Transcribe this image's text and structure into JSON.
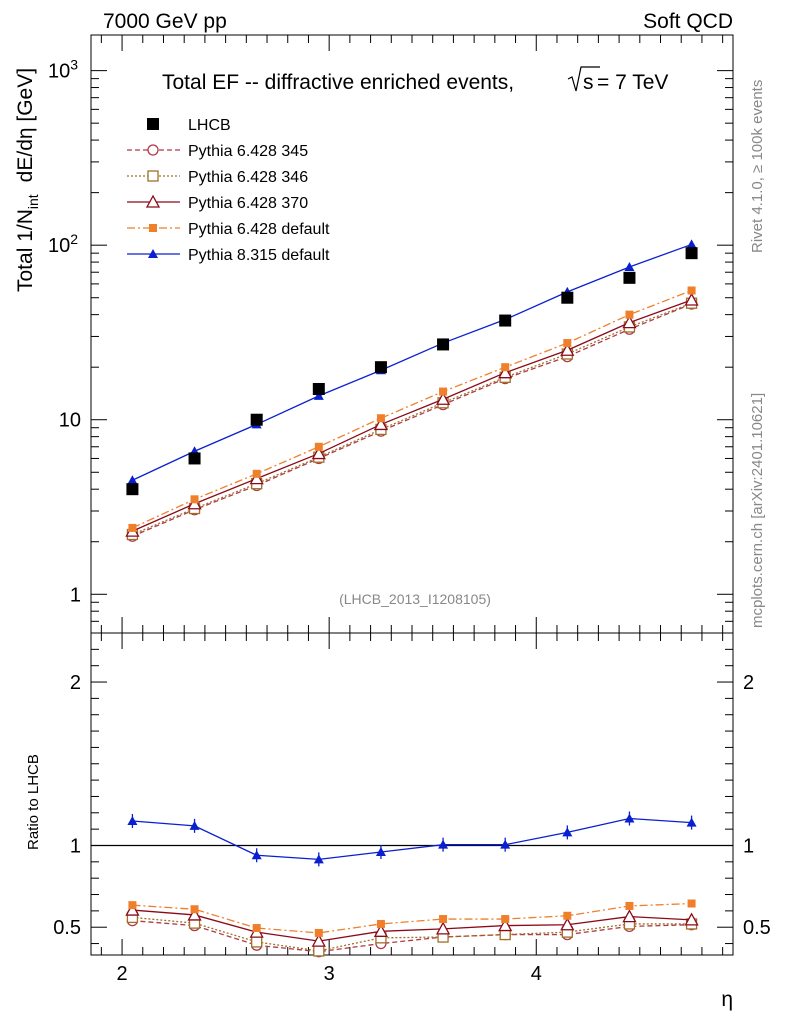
{
  "header": {
    "left": "7000 GeV pp",
    "right": "Soft QCD"
  },
  "side_labels": {
    "rivet": "Rivet 4.1.0, ≥ 100k events",
    "mcplots": "mcplots.cern.ch [arXiv:2401.10621]"
  },
  "chart_data": [
    {
      "type": "line",
      "panel": "main",
      "title": "Total EF -- diffractive enriched events,",
      "title_sqrt": "s",
      "title_suffix": "= 7 TeV",
      "ylabel_main": "Total 1/N",
      "ylabel_sub": "int",
      "ylabel_tail": "dE/dη [GeV]",
      "yscale": "log",
      "ylim": [
        0.6,
        1600
      ],
      "xlim": [
        1.85,
        4.95
      ],
      "yticks": [
        {
          "value": 1,
          "label": "1"
        },
        {
          "value": 10,
          "label": "10"
        },
        {
          "value": 100,
          "label": "10",
          "sup": "2"
        },
        {
          "value": 1000,
          "label": "10",
          "sup": "3"
        }
      ],
      "watermark": "(LHCB_2013_I1208105)",
      "x": [
        2.05,
        2.35,
        2.65,
        2.95,
        3.25,
        3.55,
        3.85,
        4.15,
        4.45,
        4.75
      ],
      "series": [
        {
          "name": "LHCB",
          "color": "#000000",
          "marker": "square-filled",
          "line": "none",
          "values": [
            4.0,
            6.0,
            10.0,
            15.0,
            20.0,
            27.0,
            37.0,
            50.0,
            65.0,
            90.0
          ]
        },
        {
          "name": "Pythia 6.428 345",
          "color": "#b03a48",
          "marker": "circle-open",
          "line": "dashed",
          "values": [
            2.15,
            3.05,
            4.2,
            6.0,
            8.6,
            12.2,
            17.2,
            23.0,
            33.0,
            46.0
          ]
        },
        {
          "name": "Pythia 6.428 346",
          "color": "#a07028",
          "marker": "square-open",
          "line": "dotted",
          "values": [
            2.2,
            3.1,
            4.3,
            6.1,
            8.8,
            12.5,
            17.5,
            23.8,
            34.0,
            46.5
          ]
        },
        {
          "name": "Pythia 6.428 370",
          "color": "#8b0a1a",
          "marker": "triangle-open",
          "line": "solid",
          "values": [
            2.3,
            3.3,
            4.6,
            6.4,
            9.4,
            13.1,
            18.6,
            25.0,
            36.0,
            48.5
          ]
        },
        {
          "name": "Pythia 6.428 default",
          "color": "#f07f2c",
          "marker": "square-filled-small",
          "line": "dashdot",
          "values": [
            2.4,
            3.5,
            4.9,
            7.0,
            10.2,
            14.5,
            20.0,
            27.5,
            40.0,
            55.0
          ]
        },
        {
          "name": "Pythia 8.315 default",
          "color": "#0a20d0",
          "marker": "triangle-filled",
          "line": "solid",
          "values": [
            4.5,
            6.6,
            9.4,
            13.7,
            19.2,
            27.5,
            37.5,
            54.0,
            75.0,
            101.0
          ]
        }
      ]
    },
    {
      "type": "line",
      "panel": "ratio",
      "ylabel": "Ratio to LHCB",
      "xlabel": "η",
      "ylim": [
        0.33,
        2.3
      ],
      "xlim": [
        1.85,
        4.95
      ],
      "yticks": [
        {
          "value": 0.5,
          "label": "0.5"
        },
        {
          "value": 1,
          "label": "1"
        },
        {
          "value": 2,
          "label": "2"
        }
      ],
      "xticks": [
        {
          "value": 2,
          "label": "2"
        },
        {
          "value": 3,
          "label": "3"
        },
        {
          "value": 4,
          "label": "4"
        }
      ],
      "reference_line": 1,
      "x": [
        2.05,
        2.35,
        2.65,
        2.95,
        3.25,
        3.55,
        3.85,
        4.15,
        4.45,
        4.75
      ],
      "series": [
        {
          "name": "Pythia 6.428 345",
          "values": [
            0.54,
            0.51,
            0.39,
            0.35,
            0.4,
            0.44,
            0.455,
            0.455,
            0.505,
            0.515
          ]
        },
        {
          "name": "Pythia 6.428 346",
          "values": [
            0.56,
            0.525,
            0.41,
            0.355,
            0.435,
            0.44,
            0.455,
            0.47,
            0.52,
            0.52
          ]
        },
        {
          "name": "Pythia 6.428 370",
          "values": [
            0.605,
            0.575,
            0.47,
            0.415,
            0.475,
            0.49,
            0.51,
            0.515,
            0.565,
            0.545
          ]
        },
        {
          "name": "Pythia 6.428 default",
          "values": [
            0.635,
            0.61,
            0.495,
            0.465,
            0.52,
            0.55,
            0.55,
            0.57,
            0.63,
            0.645
          ]
        },
        {
          "name": "Pythia 8.315 default",
          "values": [
            1.15,
            1.12,
            0.94,
            0.915,
            0.96,
            1.005,
            1.005,
            1.08,
            1.165,
            1.14
          ]
        }
      ]
    }
  ]
}
